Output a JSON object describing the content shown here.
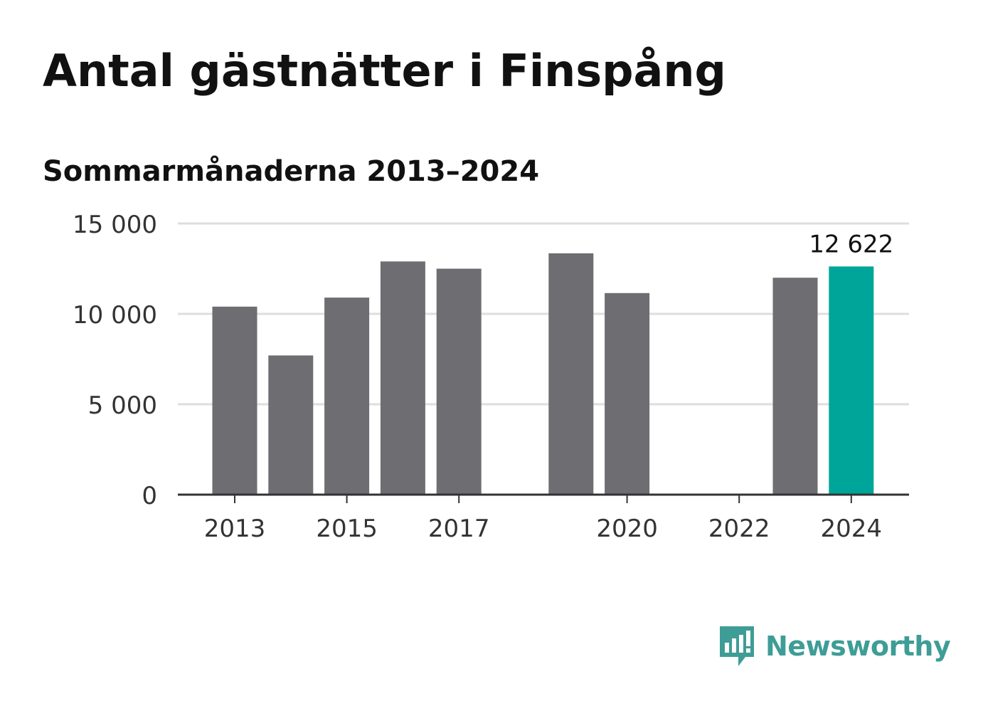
{
  "header": {
    "title": "Antal gästnätter i Finspång",
    "subtitle": "Sommarmånaderna 2013–2024"
  },
  "chart_data": {
    "type": "bar",
    "title": "Antal gästnätter i Finspång",
    "subtitle": "Sommarmånaderna 2013–2024",
    "xlabel": "",
    "ylabel": "",
    "categories": [
      "2013",
      "2014",
      "2015",
      "2016",
      "2017",
      "2018",
      "2019",
      "2020",
      "2021",
      "2022",
      "2023",
      "2024"
    ],
    "values": [
      10400,
      7700,
      10900,
      12900,
      12500,
      null,
      13350,
      11150,
      null,
      null,
      12000,
      12622
    ],
    "x_tick_labels": [
      "2013",
      "2015",
      "2017",
      "2020",
      "2022",
      "2024"
    ],
    "y_ticks": [
      0,
      5000,
      10000,
      15000
    ],
    "y_tick_labels": [
      "0",
      "5 000",
      "10 000",
      "15 000"
    ],
    "ylim": [
      0,
      15000
    ],
    "grid": true,
    "highlight": {
      "category": "2024",
      "label": "12 622"
    },
    "colors": {
      "bar": "#6e6d72",
      "highlight": "#00a59a",
      "grid": "#dedede",
      "axis": "#333333"
    }
  },
  "brand": {
    "name": "Newsworthy",
    "icon": "newsworthy-logo-icon",
    "color": "#3e9d96"
  }
}
